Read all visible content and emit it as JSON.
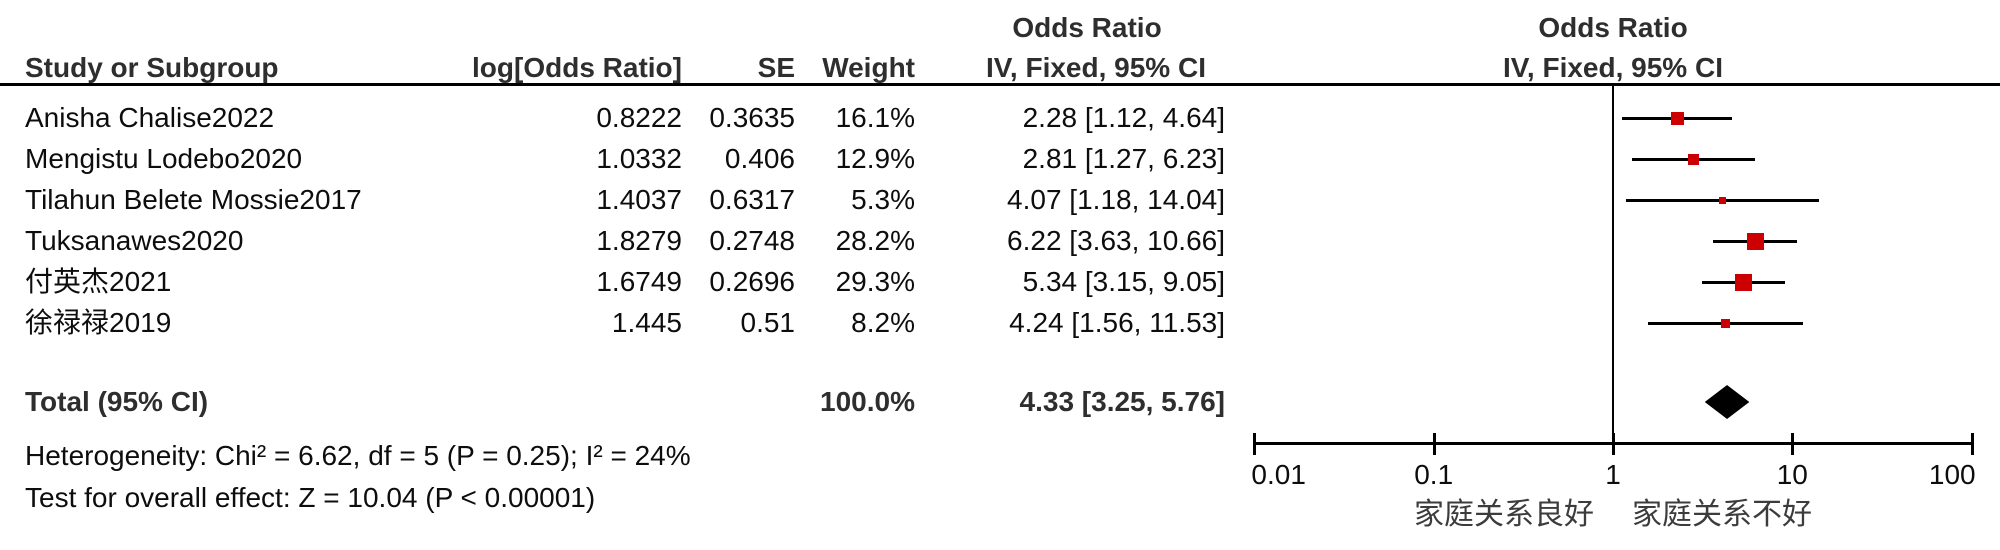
{
  "table": {
    "headers": {
      "study": "Study or Subgroup",
      "log_or": "log[Odds Ratio]",
      "se": "SE",
      "weight": "Weight",
      "or_col_top": "Odds Ratio",
      "or_col_bottom": "IV, Fixed, 95% CI"
    },
    "rows": [
      {
        "study": "Anisha Chalise2022",
        "log_or": "0.8222",
        "se": "0.3635",
        "weight": "16.1%",
        "or_ci": "2.28 [1.12, 4.64]"
      },
      {
        "study": "Mengistu Lodebo2020",
        "log_or": "1.0332",
        "se": "0.406",
        "weight": "12.9%",
        "or_ci": "2.81 [1.27, 6.23]"
      },
      {
        "study": "Tilahun Belete Mossie2017",
        "log_or": "1.4037",
        "se": "0.6317",
        "weight": "5.3%",
        "or_ci": "4.07 [1.18, 14.04]"
      },
      {
        "study": "Tuksanawes2020",
        "log_or": "1.8279",
        "se": "0.2748",
        "weight": "28.2%",
        "or_ci": "6.22 [3.63, 10.66]"
      },
      {
        "study": "付英杰2021",
        "log_or": "1.6749",
        "se": "0.2696",
        "weight": "29.3%",
        "or_ci": "5.34 [3.15, 9.05]"
      },
      {
        "study": "徐禄禄2019",
        "log_or": "1.445",
        "se": "0.51",
        "weight": "8.2%",
        "or_ci": "4.24 [1.56, 11.53]"
      }
    ],
    "total": {
      "label": "Total (95% CI)",
      "weight": "100.0%",
      "or_ci": "4.33 [3.25, 5.76]"
    },
    "heterogeneity": "Heterogeneity: Chi² = 6.62, df = 5 (P = 0.25); I² = 24%",
    "overall_effect": "Test for overall effect: Z = 10.04 (P < 0.00001)"
  },
  "plot": {
    "header_top": "Odds Ratio",
    "header_bottom": "IV, Fixed, 95% CI",
    "left_label": "家庭关系良好",
    "right_label": "家庭关系不好",
    "marker_color": "#CC0000",
    "line_color": "#000000"
  },
  "chart_data": {
    "type": "scatter",
    "subtype": "forest-plot",
    "title": "Odds Ratio IV, Fixed, 95% CI",
    "x_scale": "log10",
    "x_ticks": [
      0.01,
      0.1,
      1,
      10,
      100
    ],
    "x_tick_labels": [
      "0.01",
      "0.1",
      "1",
      "10",
      "100"
    ],
    "x_axis_left_label": "家庭关系良好",
    "x_axis_right_label": "家庭关系不好",
    "studies": [
      {
        "name": "Anisha Chalise2022",
        "log_or": 0.8222,
        "se": 0.3635,
        "weight_pct": 16.1,
        "or": 2.28,
        "ci_low": 1.12,
        "ci_high": 4.64
      },
      {
        "name": "Mengistu Lodebo2020",
        "log_or": 1.0332,
        "se": 0.406,
        "weight_pct": 12.9,
        "or": 2.81,
        "ci_low": 1.27,
        "ci_high": 6.23
      },
      {
        "name": "Tilahun Belete Mossie2017",
        "log_or": 1.4037,
        "se": 0.6317,
        "weight_pct": 5.3,
        "or": 4.07,
        "ci_low": 1.18,
        "ci_high": 14.04
      },
      {
        "name": "Tuksanawes2020",
        "log_or": 1.8279,
        "se": 0.2748,
        "weight_pct": 28.2,
        "or": 6.22,
        "ci_low": 3.63,
        "ci_high": 10.66
      },
      {
        "name": "付英杰2021",
        "log_or": 1.6749,
        "se": 0.2696,
        "weight_pct": 29.3,
        "or": 5.34,
        "ci_low": 3.15,
        "ci_high": 9.05
      },
      {
        "name": "徐禄禄2019",
        "log_or": 1.445,
        "se": 0.51,
        "weight_pct": 8.2,
        "or": 4.24,
        "ci_low": 1.56,
        "ci_high": 11.53
      }
    ],
    "total": {
      "name": "Total (95% CI)",
      "weight_pct": 100.0,
      "or": 4.33,
      "ci_low": 3.25,
      "ci_high": 5.76
    },
    "heterogeneity": {
      "chi2": 6.62,
      "df": 5,
      "p": 0.25,
      "i2_pct": 24
    },
    "overall_effect": {
      "z": 10.04,
      "p": "< 0.00001"
    }
  }
}
